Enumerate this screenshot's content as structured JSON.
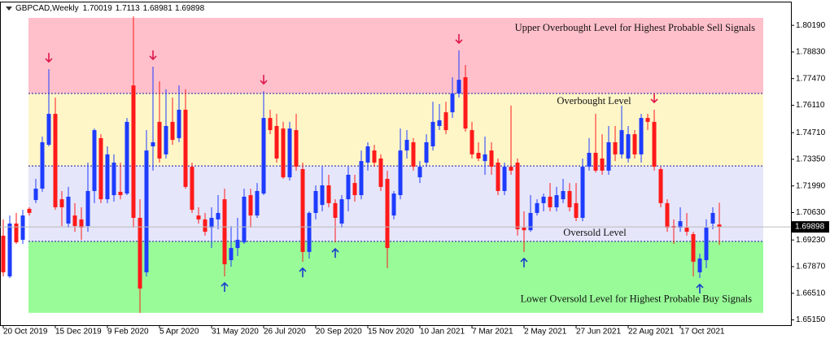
{
  "chart_data": {
    "type": "candlestick",
    "title": "GBPCAD,Weekly",
    "categories": [
      "20 Oct 2019",
      null,
      null,
      null,
      null,
      null,
      null,
      null,
      "15 Dec 2019",
      null,
      null,
      null,
      null,
      null,
      null,
      null,
      "9 Feb 2020",
      null,
      null,
      null,
      null,
      null,
      null,
      null,
      "5 Apr 2020",
      null,
      null,
      null,
      null,
      null,
      null,
      null,
      "31 May 2020",
      null,
      null,
      null,
      null,
      null,
      null,
      null,
      "26 Jul 2020",
      null,
      null,
      null,
      null,
      null,
      null,
      null,
      "20 Sep 2020",
      null,
      null,
      null,
      null,
      null,
      null,
      null,
      "15 Nov 2020",
      null,
      null,
      null,
      null,
      null,
      null,
      null,
      "10 Jan 2021",
      null,
      null,
      null,
      null,
      null,
      null,
      null,
      "7 Mar 2021",
      null,
      null,
      null,
      null,
      null,
      null,
      null,
      "2 May 2021",
      null,
      null,
      null,
      null,
      null,
      null,
      null,
      "27 Jun 2021",
      null,
      null,
      null,
      null,
      null,
      null,
      null,
      "22 Aug 2021",
      null,
      null,
      null,
      null,
      null,
      null,
      null,
      "17 Oct 2021",
      null,
      null,
      null,
      null,
      null,
      null
    ],
    "open": [
      1.6945,
      1.6737,
      1.7007,
      1.6924,
      1.7082,
      1.7127,
      1.7185,
      1.7409,
      1.7567,
      1.7131,
      1.7007,
      1.7048,
      1.7028,
      1.6994,
      1.7173,
      1.7443,
      1.7131,
      1.7152,
      1.7169,
      1.716,
      1.7712,
      1.7036,
      1.6758,
      1.7401,
      1.7526,
      1.736,
      1.7526,
      1.7443,
      1.7588,
      1.7297,
      1.7048,
      1.7028,
      1.6986,
      1.7028,
      1.7131,
      1.682,
      1.6882,
      1.6911,
      1.7152,
      1.7048,
      1.716,
      1.7546,
      1.7505,
      1.7492,
      1.7243,
      1.7484,
      1.7285,
      1.6862,
      1.7061,
      1.7102,
      1.7202,
      1.7111,
      1.7007,
      1.7131,
      1.7214,
      1.7152,
      1.7318,
      1.738,
      1.7339,
      1.7235,
      1.7048,
      1.7152,
      1.738,
      1.7422,
      1.7243,
      1.7318,
      1.7401,
      1.7505,
      1.7575,
      1.7575,
      1.7671,
      1.7754,
      1.7484,
      1.7368,
      1.7326,
      1.738,
      1.7318,
      1.7173,
      1.7297,
      1.7318,
      1.6986,
      1.6973,
      1.7061,
      1.7111,
      1.7144,
      1.709,
      1.7131,
      1.7173,
      1.7111,
      1.7036,
      1.7297,
      1.7368,
      1.7339,
      1.7277,
      1.7422,
      1.736,
      1.7339,
      1.7463,
      1.736,
      1.7546,
      1.7526,
      1.7285,
      1.7111,
      1.6994,
      1.6986,
      1.6986,
      1.6953,
      1.6758,
      1.682,
      1.7007,
      1.70019
    ],
    "high": [
      1.7028,
      1.7048,
      1.7061,
      1.7077,
      1.709,
      1.7235,
      1.7451,
      1.7795,
      1.765,
      1.7173,
      1.7194,
      1.7111,
      1.709,
      1.7318,
      1.7492,
      1.7463,
      1.7401,
      1.736,
      1.7318,
      1.7546,
      1.8065,
      1.7131,
      1.7484,
      1.7808,
      1.7733,
      1.7692,
      1.765,
      1.7712,
      1.7692,
      1.7318,
      1.709,
      1.7061,
      1.709,
      1.7152,
      1.7185,
      1.6994,
      1.7036,
      1.7185,
      1.7185,
      1.7214,
      1.7683,
      1.7588,
      1.7567,
      1.7526,
      1.7526,
      1.7567,
      1.7318,
      1.7069,
      1.7202,
      1.7297,
      1.7256,
      1.7131,
      1.7152,
      1.7297,
      1.7256,
      1.738,
      1.7422,
      1.7409,
      1.736,
      1.7277,
      1.7173,
      1.7492,
      1.7484,
      1.7443,
      1.7326,
      1.7463,
      1.7629,
      1.7617,
      1.7629,
      1.7754,
      1.7891,
      1.7816,
      1.7526,
      1.7422,
      1.7451,
      1.7422,
      1.7339,
      1.7318,
      1.7609,
      1.7339,
      1.7069,
      1.7152,
      1.7131,
      1.716,
      1.7214,
      1.7194,
      1.7235,
      1.7214,
      1.7214,
      1.7339,
      1.7443,
      1.7567,
      1.7463,
      1.7505,
      1.7505,
      1.7609,
      1.7505,
      1.7484,
      1.7567,
      1.7567,
      1.7588,
      1.7297,
      1.7131,
      1.7028,
      1.709,
      1.7061,
      1.6965,
      1.6853,
      1.7028,
      1.709,
      1.7113
    ],
    "low": [
      1.6737,
      1.6729,
      1.6903,
      1.6903,
      1.7048,
      1.7111,
      1.7169,
      1.7401,
      1.7077,
      1.6994,
      1.6986,
      1.6965,
      1.6924,
      1.6965,
      1.7111,
      1.7111,
      1.7111,
      1.7119,
      1.7131,
      1.7152,
      1.6986,
      1.6551,
      1.6737,
      1.7277,
      1.7318,
      1.7339,
      1.7409,
      1.7422,
      1.7185,
      1.7061,
      1.7007,
      1.6945,
      1.6882,
      1.6978,
      1.6737,
      1.6787,
      1.6841,
      1.6903,
      1.6986,
      1.7036,
      1.7152,
      1.7463,
      1.7318,
      1.7235,
      1.7227,
      1.7277,
      1.6812,
      1.6828,
      1.7028,
      1.7069,
      1.709,
      1.6911,
      1.6986,
      1.7069,
      1.7119,
      1.7131,
      1.7277,
      1.7297,
      1.7173,
      1.6779,
      1.7028,
      1.7131,
      1.7339,
      1.7277,
      1.7214,
      1.7297,
      1.738,
      1.7484,
      1.7463,
      1.7546,
      1.765,
      1.7476,
      1.7339,
      1.7326,
      1.7256,
      1.7256,
      1.7152,
      1.7152,
      1.7256,
      1.6945,
      1.6862,
      1.6965,
      1.7048,
      1.7069,
      1.7069,
      1.7069,
      1.7111,
      1.7069,
      1.7019,
      1.7019,
      1.7277,
      1.7268,
      1.7256,
      1.7256,
      1.7326,
      1.7339,
      1.7318,
      1.7339,
      1.7318,
      1.7484,
      1.7277,
      1.709,
      1.6965,
      1.6903,
      1.6965,
      1.6945,
      1.6737,
      1.6729,
      1.6779,
      1.6978,
      1.68981
    ],
    "close": [
      1.6758,
      1.7007,
      1.6911,
      1.7048,
      1.7061,
      1.7185,
      1.7422,
      1.7567,
      1.709,
      1.709,
      1.7144,
      1.6994,
      1.6986,
      1.7173,
      1.7484,
      1.7131,
      1.736,
      1.7318,
      1.7152,
      1.7526,
      1.7036,
      1.6675,
      1.738,
      1.7422,
      1.7339,
      1.7505,
      1.7434,
      1.7588,
      1.7194,
      1.7077,
      1.7028,
      1.6965,
      1.7036,
      1.7061,
      1.6799,
      1.6882,
      1.6924,
      1.7144,
      1.7048,
      1.7173,
      1.7546,
      1.7484,
      1.7339,
      1.7243,
      1.7492,
      1.7297,
      1.6862,
      1.7061,
      1.7173,
      1.7202,
      1.7111,
      1.7036,
      1.7131,
      1.7256,
      1.7152,
      1.7326,
      1.7401,
      1.7318,
      1.7194,
      1.6882,
      1.716,
      1.738,
      1.7434,
      1.7297,
      1.7297,
      1.7422,
      1.7526,
      1.7534,
      1.7484,
      1.7671,
      1.7741,
      1.7492,
      1.736,
      1.7339,
      1.736,
      1.7297,
      1.7173,
      1.7297,
      1.7277,
      1.6978,
      1.6973,
      1.7061,
      1.7111,
      1.7144,
      1.709,
      1.7152,
      1.7173,
      1.709,
      1.7036,
      1.7297,
      1.7368,
      1.7277,
      1.7277,
      1.7422,
      1.736,
      1.7484,
      1.7463,
      1.736,
      1.7546,
      1.7526,
      1.7297,
      1.7111,
      1.6986,
      1.6986,
      1.7019,
      1.6965,
      1.6812,
      1.6828,
      1.6986,
      1.7061,
      1.69898
    ],
    "up_color": "#1e3cff",
    "down_color": "#ff1a1a",
    "ylim": [
      1.6488,
      1.814
    ],
    "yticks": [
      {
        "value": 1.8019,
        "label": "1.80190"
      },
      {
        "value": 1.7883,
        "label": "1.78830"
      },
      {
        "value": 1.7747,
        "label": "1.77470"
      },
      {
        "value": 1.7611,
        "label": "1.76110"
      },
      {
        "value": 1.7471,
        "label": "1.74710"
      },
      {
        "value": 1.7335,
        "label": "1.73350"
      },
      {
        "value": 1.7199,
        "label": "1.71990"
      },
      {
        "value": 1.7063,
        "label": "1.70630"
      },
      {
        "value": 1.6923,
        "label": "1.69230"
      },
      {
        "value": 1.6787,
        "label": "1.67870"
      },
      {
        "value": 1.6651,
        "label": "1.66510"
      },
      {
        "value": 1.6515,
        "label": "1.65150"
      }
    ],
    "grid": false,
    "zones": [
      {
        "label": "Upper Overbought Level for Highest Probable Sell Signals",
        "from": 1.7671,
        "to": 1.8057,
        "color": "#ffc0cb"
      },
      {
        "label": "Overbought Level",
        "from": 1.7301,
        "to": 1.7671,
        "color": "#fff6c8"
      },
      {
        "label": "Oversold Level",
        "from": 1.6916,
        "to": 1.7301,
        "color": "#e6e6fa"
      },
      {
        "label": "Lower Oversold Level for Highest Probable Buy Signals",
        "from": 1.6551,
        "to": 1.6916,
        "color": "#98fb98"
      }
    ],
    "sell_signals": [
      7,
      23,
      40,
      70,
      100
    ],
    "buy_signals": [
      34,
      46,
      51,
      80,
      107
    ],
    "sell_color": "#e0184c",
    "buy_color": "#1a3ccc"
  }
}
